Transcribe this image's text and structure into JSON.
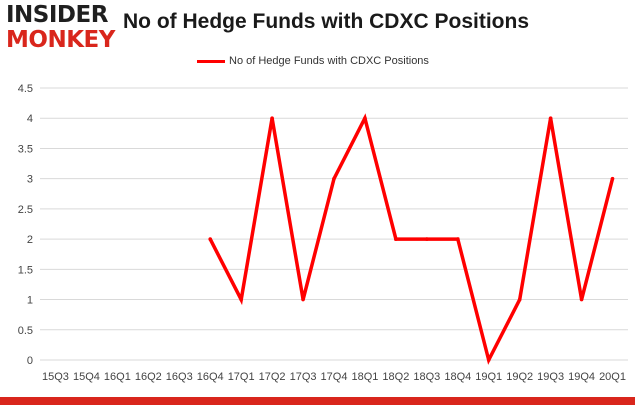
{
  "brand": {
    "logo_top": "INSIDER",
    "logo_bottom": "MONKEY"
  },
  "colors": {
    "series": "#ff0000",
    "brand_red": "#d9261c",
    "grid": "#d9d9d9",
    "axis_text": "#444444"
  },
  "chart_data": {
    "type": "line",
    "title": "No of Hedge Funds with CDXC Positions",
    "xlabel": "",
    "ylabel": "",
    "categories": [
      "15Q3",
      "15Q4",
      "16Q1",
      "16Q2",
      "16Q3",
      "16Q4",
      "17Q1",
      "17Q2",
      "17Q3",
      "17Q4",
      "18Q1",
      "18Q2",
      "18Q3",
      "18Q4",
      "19Q1",
      "19Q2",
      "19Q3",
      "19Q4",
      "20Q1"
    ],
    "series": [
      {
        "name": "No of Hedge Funds with CDXC Positions",
        "values": [
          null,
          null,
          null,
          null,
          null,
          2,
          1,
          4,
          1,
          3,
          4,
          2,
          2,
          2,
          0,
          1,
          4,
          1,
          3
        ]
      }
    ],
    "ylim": [
      0,
      4.5
    ],
    "yticks": [
      "0",
      "0.5",
      "1",
      "1.5",
      "2",
      "2.5",
      "3",
      "3.5",
      "4",
      "4.5"
    ],
    "ytick_values": [
      0,
      0.5,
      1,
      1.5,
      2,
      2.5,
      3,
      3.5,
      4,
      4.5
    ],
    "grid": true,
    "legend_position": "top-center"
  }
}
